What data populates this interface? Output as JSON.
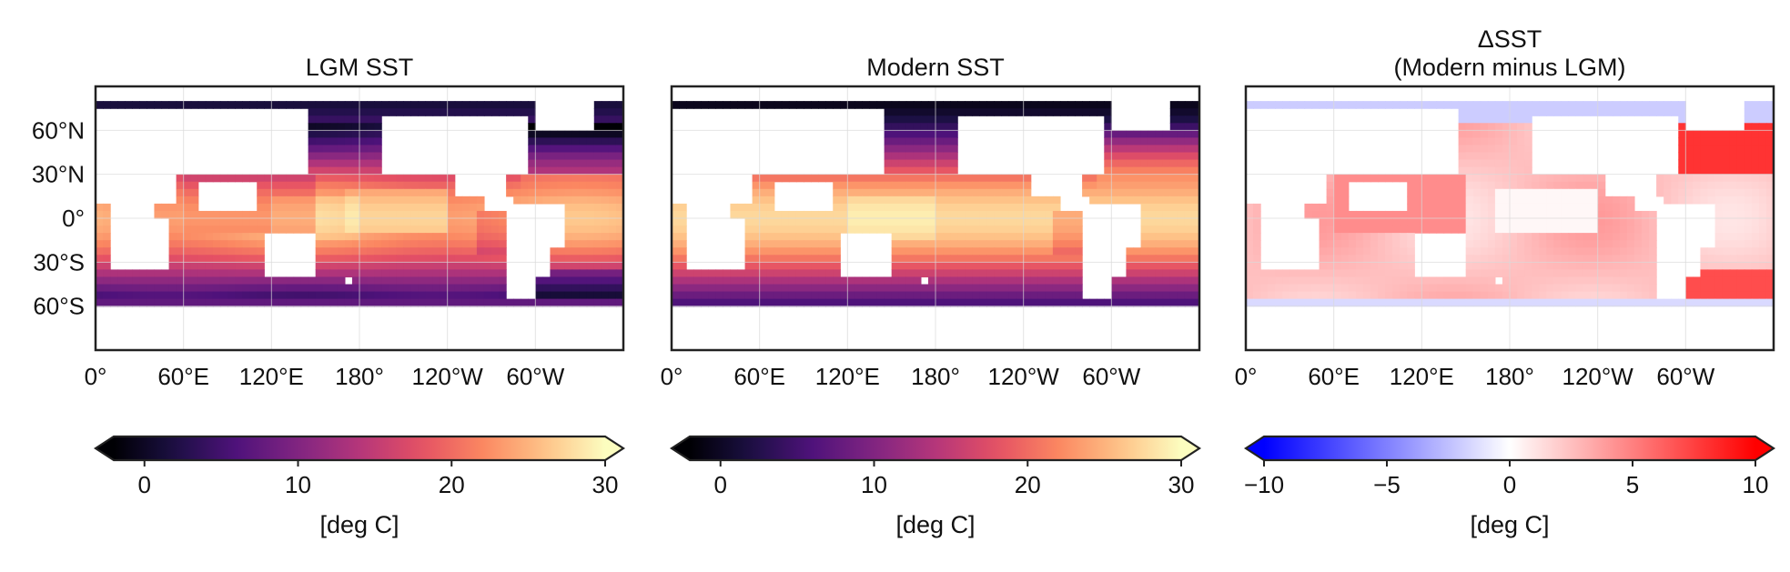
{
  "figure": {
    "panels": [
      {
        "title_lines": [
          "LGM SST"
        ],
        "colorbar_ticks": [
          "0",
          "10",
          "20",
          "30"
        ],
        "colorbar_label": "[deg C]",
        "colormap": "magma",
        "range": [
          -2,
          30
        ],
        "tick_values": [
          0,
          10,
          20,
          30
        ]
      },
      {
        "title_lines": [
          "Modern SST"
        ],
        "colorbar_ticks": [
          "0",
          "10",
          "20",
          "30"
        ],
        "colorbar_label": "[deg C]",
        "colormap": "magma",
        "range": [
          -2,
          30
        ],
        "tick_values": [
          0,
          10,
          20,
          30
        ]
      },
      {
        "title_lines": [
          "ΔSST",
          "(Modern minus LGM)"
        ],
        "colorbar_ticks": [
          "−10",
          "−5",
          "0",
          "5",
          "10"
        ],
        "colorbar_label": "[deg C]",
        "colormap": "bwr",
        "range": [
          -10,
          10
        ],
        "tick_values": [
          -10,
          -5,
          0,
          5,
          10
        ]
      }
    ],
    "lat_ticks": [
      "60°N",
      "30°N",
      "0°",
      "30°S",
      "60°S"
    ],
    "lat_values": [
      60,
      30,
      0,
      -30,
      -60
    ],
    "lon_ticks": [
      "0°",
      "60°E",
      "120°E",
      "180°",
      "120°W",
      "60°W"
    ],
    "lon_values": [
      0,
      60,
      120,
      180,
      240,
      300
    ],
    "map_extent": {
      "lon": [
        0,
        360
      ],
      "lat": [
        -90,
        90
      ]
    },
    "colors": {
      "land": "#ffffff",
      "coastline": "#c8c8c8",
      "grid": "#d9d9d9",
      "frame": "#222222"
    }
  }
}
